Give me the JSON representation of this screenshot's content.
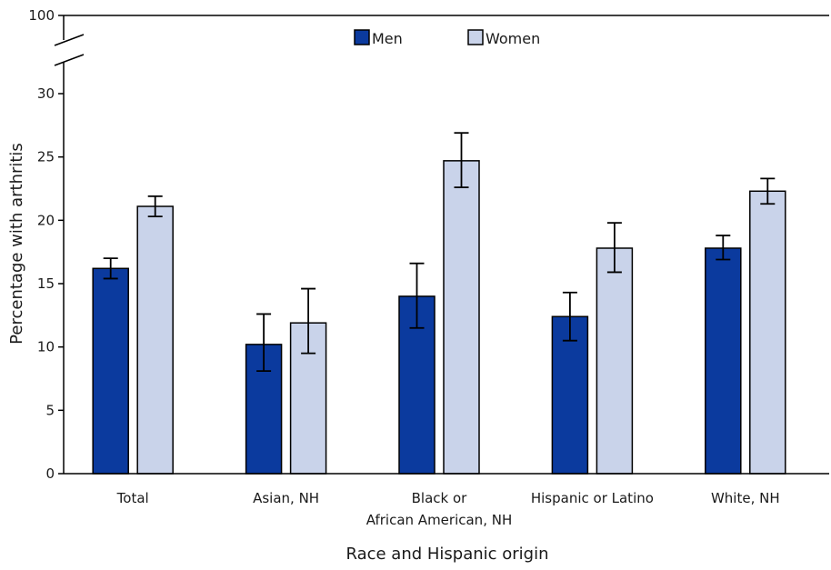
{
  "chart_data": {
    "type": "bar",
    "title": "",
    "xlabel": "Race and Hispanic origin",
    "ylabel": "Percentage with arthritis",
    "categories": [
      [
        "Total"
      ],
      [
        "Asian, NH"
      ],
      [
        "Black or",
        "African American, NH"
      ],
      [
        "Hispanic or Latino"
      ],
      [
        "White, NH"
      ]
    ],
    "series": [
      {
        "name": "Men",
        "color": "#0b3a9e",
        "values": [
          16.2,
          10.2,
          14.0,
          12.4,
          17.8
        ],
        "ci_low": [
          15.4,
          8.1,
          11.5,
          10.5,
          16.9
        ],
        "ci_high": [
          17.0,
          12.6,
          16.6,
          14.3,
          18.8
        ]
      },
      {
        "name": "Women",
        "color": "#c9d3ea",
        "values": [
          21.1,
          11.9,
          24.7,
          17.8,
          22.3
        ],
        "ci_low": [
          20.3,
          9.5,
          22.6,
          15.9,
          21.3
        ],
        "ci_high": [
          21.9,
          14.6,
          26.9,
          19.8,
          23.3
        ]
      }
    ],
    "y_ticks": [
      0,
      5,
      10,
      15,
      20,
      25,
      30
    ],
    "y_break_tick": 100,
    "ylim": [
      0,
      30
    ],
    "axis_break": true,
    "grid": false,
    "legend_position": "top-center"
  }
}
